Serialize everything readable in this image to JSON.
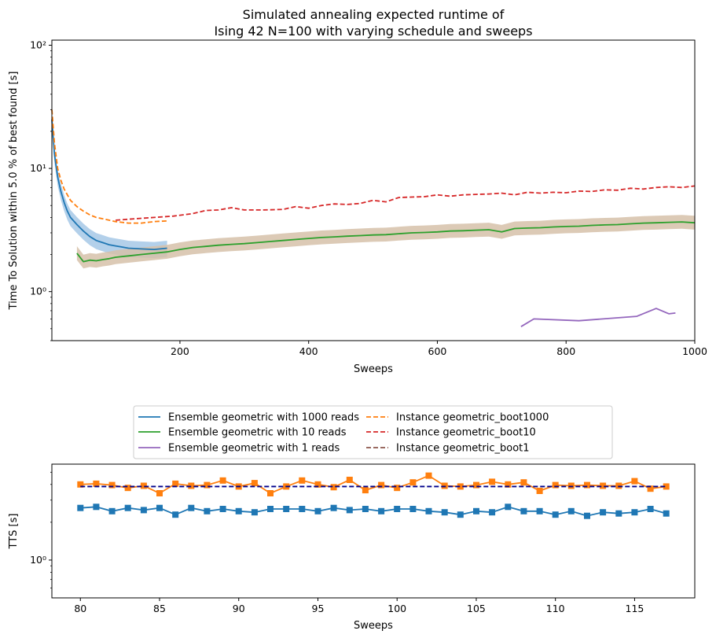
{
  "chart_data": [
    {
      "type": "line",
      "title": [
        "Simulated annealing expected runtime of",
        "Ising 42 N=100 with varying schedule and sweeps"
      ],
      "xlabel": "Sweeps",
      "ylabel": "Time To Solution within 5.0 % of best found [s]",
      "xlim": [
        1,
        1000
      ],
      "ylim": [
        0.4,
        110
      ],
      "yscale": "log",
      "xticks": [
        200,
        400,
        600,
        800,
        1000
      ],
      "yticks": [
        {
          "value": 1,
          "label": "10⁰"
        },
        {
          "value": 10,
          "label": "10¹"
        },
        {
          "value": 100,
          "label": "10²"
        }
      ],
      "grid": false,
      "series": [
        {
          "name": "Ensemble geometric with 1000 reads",
          "color": "#1f77b4",
          "style": "solid",
          "x": [
            1,
            5,
            10,
            15,
            20,
            25,
            30,
            40,
            50,
            60,
            70,
            80,
            90,
            100,
            110,
            120,
            140,
            160,
            180
          ],
          "y": [
            25,
            13,
            8.5,
            6.5,
            5.3,
            4.5,
            4.0,
            3.5,
            3.1,
            2.8,
            2.6,
            2.5,
            2.4,
            2.35,
            2.3,
            2.25,
            2.22,
            2.2,
            2.25
          ],
          "band": [
            0.85,
            1.15
          ],
          "band_color": "#a6c8e6"
        },
        {
          "name": "Instance geometric_boot1000",
          "color": "#ff7f0e",
          "style": "dashed",
          "x": [
            1,
            5,
            10,
            15,
            20,
            30,
            40,
            50,
            60,
            70,
            80,
            90,
            100,
            110,
            120,
            140,
            160,
            180
          ],
          "y": [
            30,
            16,
            10,
            8.0,
            6.8,
            5.5,
            4.9,
            4.5,
            4.2,
            4.0,
            3.9,
            3.8,
            3.7,
            3.65,
            3.6,
            3.6,
            3.7,
            3.75
          ]
        },
        {
          "name": "Ensemble geometric with 10 reads",
          "color": "#2ca02c",
          "style": "solid",
          "x": [
            40,
            50,
            60,
            70,
            80,
            90,
            100,
            120,
            140,
            160,
            180,
            200,
            220,
            240,
            260,
            280,
            300,
            320,
            340,
            360,
            380,
            400,
            420,
            440,
            460,
            480,
            500,
            520,
            540,
            560,
            580,
            600,
            620,
            640,
            660,
            680,
            700,
            720,
            740,
            760,
            780,
            800,
            820,
            840,
            860,
            880,
            900,
            920,
            940,
            960,
            980,
            1000
          ],
          "y": [
            2.05,
            1.75,
            1.8,
            1.78,
            1.82,
            1.85,
            1.9,
            1.95,
            2.0,
            2.05,
            2.1,
            2.2,
            2.28,
            2.33,
            2.38,
            2.42,
            2.45,
            2.5,
            2.55,
            2.6,
            2.65,
            2.7,
            2.75,
            2.78,
            2.82,
            2.85,
            2.88,
            2.9,
            2.95,
            3.0,
            3.02,
            3.05,
            3.1,
            3.12,
            3.15,
            3.18,
            3.05,
            3.25,
            3.28,
            3.3,
            3.35,
            3.38,
            3.4,
            3.45,
            3.48,
            3.5,
            3.55,
            3.6,
            3.62,
            3.65,
            3.68,
            3.62
          ],
          "band": [
            0.88,
            1.14
          ],
          "band_color": "#d6c1a9"
        },
        {
          "name": "Instance geometric_boot10",
          "color": "#d62728",
          "style": "dashed",
          "x": [
            100,
            130,
            160,
            190,
            220,
            240,
            260,
            280,
            300,
            330,
            360,
            380,
            400,
            420,
            440,
            460,
            480,
            500,
            520,
            540,
            560,
            580,
            600,
            620,
            640,
            660,
            680,
            700,
            720,
            740,
            760,
            780,
            800,
            820,
            840,
            860,
            880,
            900,
            920,
            940,
            960,
            980,
            1000
          ],
          "y": [
            3.8,
            3.9,
            4.0,
            4.1,
            4.3,
            4.55,
            4.6,
            4.8,
            4.6,
            4.6,
            4.65,
            4.9,
            4.75,
            5.0,
            5.15,
            5.1,
            5.2,
            5.5,
            5.35,
            5.8,
            5.85,
            5.9,
            6.1,
            5.95,
            6.1,
            6.15,
            6.2,
            6.3,
            6.1,
            6.4,
            6.3,
            6.4,
            6.35,
            6.55,
            6.5,
            6.7,
            6.65,
            6.9,
            6.8,
            7.0,
            7.1,
            7.0,
            7.2
          ]
        },
        {
          "name": "Ensemble geometric with 1 reads",
          "color": "#9467bd",
          "style": "solid",
          "x": [
            730,
            750,
            820,
            910,
            940,
            960,
            970
          ],
          "y": [
            0.52,
            0.6,
            0.58,
            0.63,
            0.73,
            0.66,
            0.67
          ]
        },
        {
          "name": "Instance geometric_boot1",
          "color": "#8c564b",
          "style": "dashed",
          "x": [],
          "y": []
        }
      ],
      "legend": "between-plots"
    },
    {
      "type": "line",
      "xlabel": "Sweeps",
      "ylabel": "TTS [s]",
      "xlim": [
        78.2,
        118.8
      ],
      "ylim": [
        0.5,
        5.8
      ],
      "yscale": "log",
      "xticks": [
        80,
        85,
        90,
        95,
        100,
        105,
        110,
        115
      ],
      "yticks": [
        {
          "value": 1,
          "label": "10⁰"
        }
      ],
      "grid": false,
      "x": [
        80,
        81,
        82,
        83,
        84,
        85,
        86,
        87,
        88,
        89,
        90,
        91,
        92,
        93,
        94,
        95,
        96,
        97,
        98,
        99,
        100,
        101,
        102,
        103,
        104,
        105,
        106,
        107,
        108,
        109,
        110,
        111,
        112,
        113,
        114,
        115,
        116,
        117
      ],
      "series": [
        {
          "color": "#ff7f0e",
          "marker": "square",
          "values": [
            4.0,
            4.05,
            3.95,
            3.75,
            3.9,
            3.4,
            4.05,
            3.9,
            3.95,
            4.3,
            3.85,
            4.1,
            3.4,
            3.85,
            4.3,
            4.0,
            3.8,
            4.35,
            3.6,
            3.95,
            3.75,
            4.15,
            4.7,
            3.9,
            3.85,
            3.95,
            4.2,
            4.0,
            4.15,
            3.55,
            3.95,
            3.9,
            3.95,
            3.9,
            3.9,
            4.25,
            3.7,
            3.85
          ]
        },
        {
          "color": "#1f77b4",
          "marker": "square",
          "values": [
            2.6,
            2.65,
            2.45,
            2.6,
            2.5,
            2.6,
            2.3,
            2.6,
            2.45,
            2.55,
            2.45,
            2.4,
            2.55,
            2.55,
            2.55,
            2.45,
            2.6,
            2.5,
            2.55,
            2.45,
            2.55,
            2.55,
            2.45,
            2.4,
            2.3,
            2.45,
            2.4,
            2.65,
            2.45,
            2.45,
            2.3,
            2.45,
            2.25,
            2.4,
            2.35,
            2.4,
            2.55,
            2.35
          ]
        },
        {
          "color": "#00008b",
          "style": "dashed",
          "values_const": 3.85
        }
      ]
    }
  ],
  "colors": {
    "blue": "#1f77b4",
    "orange": "#ff7f0e",
    "green": "#2ca02c",
    "red": "#d62728",
    "purple": "#9467bd",
    "brown": "#8c564b",
    "navy": "#00008b"
  }
}
